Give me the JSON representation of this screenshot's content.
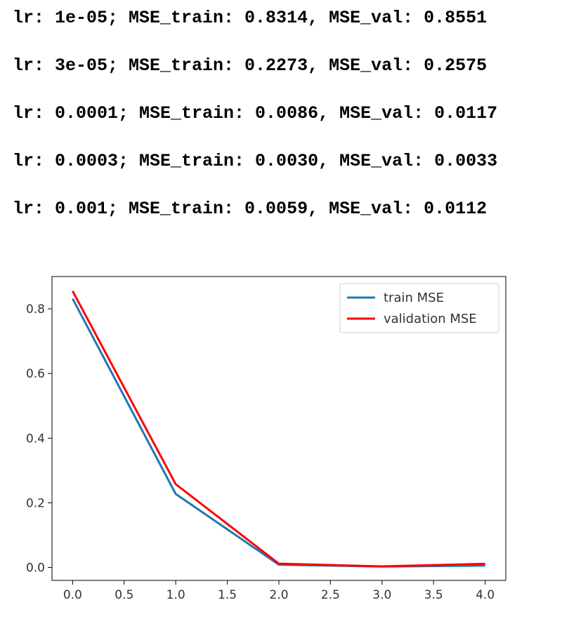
{
  "log_lines": [
    "lr: 1e-05; MSE_train: 0.8314, MSE_val: 0.8551",
    "lr: 3e-05; MSE_train: 0.2273, MSE_val: 0.2575",
    "lr: 0.0001; MSE_train: 0.0086, MSE_val: 0.0117",
    "lr: 0.0003; MSE_train: 0.0030, MSE_val: 0.0033",
    "lr: 0.001; MSE_train: 0.0059, MSE_val: 0.0112"
  ],
  "chart_data": {
    "type": "line",
    "title": "",
    "xlabel": "",
    "ylabel": "",
    "x": [
      0,
      1,
      2,
      3,
      4
    ],
    "series": [
      {
        "name": "train MSE",
        "color": "#1f77b4",
        "values": [
          0.8314,
          0.2273,
          0.0086,
          0.003,
          0.0059
        ]
      },
      {
        "name": "validation MSE",
        "color": "#ff0000",
        "values": [
          0.8551,
          0.2575,
          0.0117,
          0.0033,
          0.0112
        ]
      }
    ],
    "xlim": [
      -0.2,
      4.2
    ],
    "ylim": [
      -0.04,
      0.9
    ],
    "xticks": [
      "0.0",
      "0.5",
      "1.0",
      "1.5",
      "2.0",
      "2.5",
      "3.0",
      "3.5",
      "4.0"
    ],
    "yticks": [
      "0.0",
      "0.2",
      "0.4",
      "0.6",
      "0.8"
    ],
    "grid": false,
    "legend": "top-right"
  }
}
